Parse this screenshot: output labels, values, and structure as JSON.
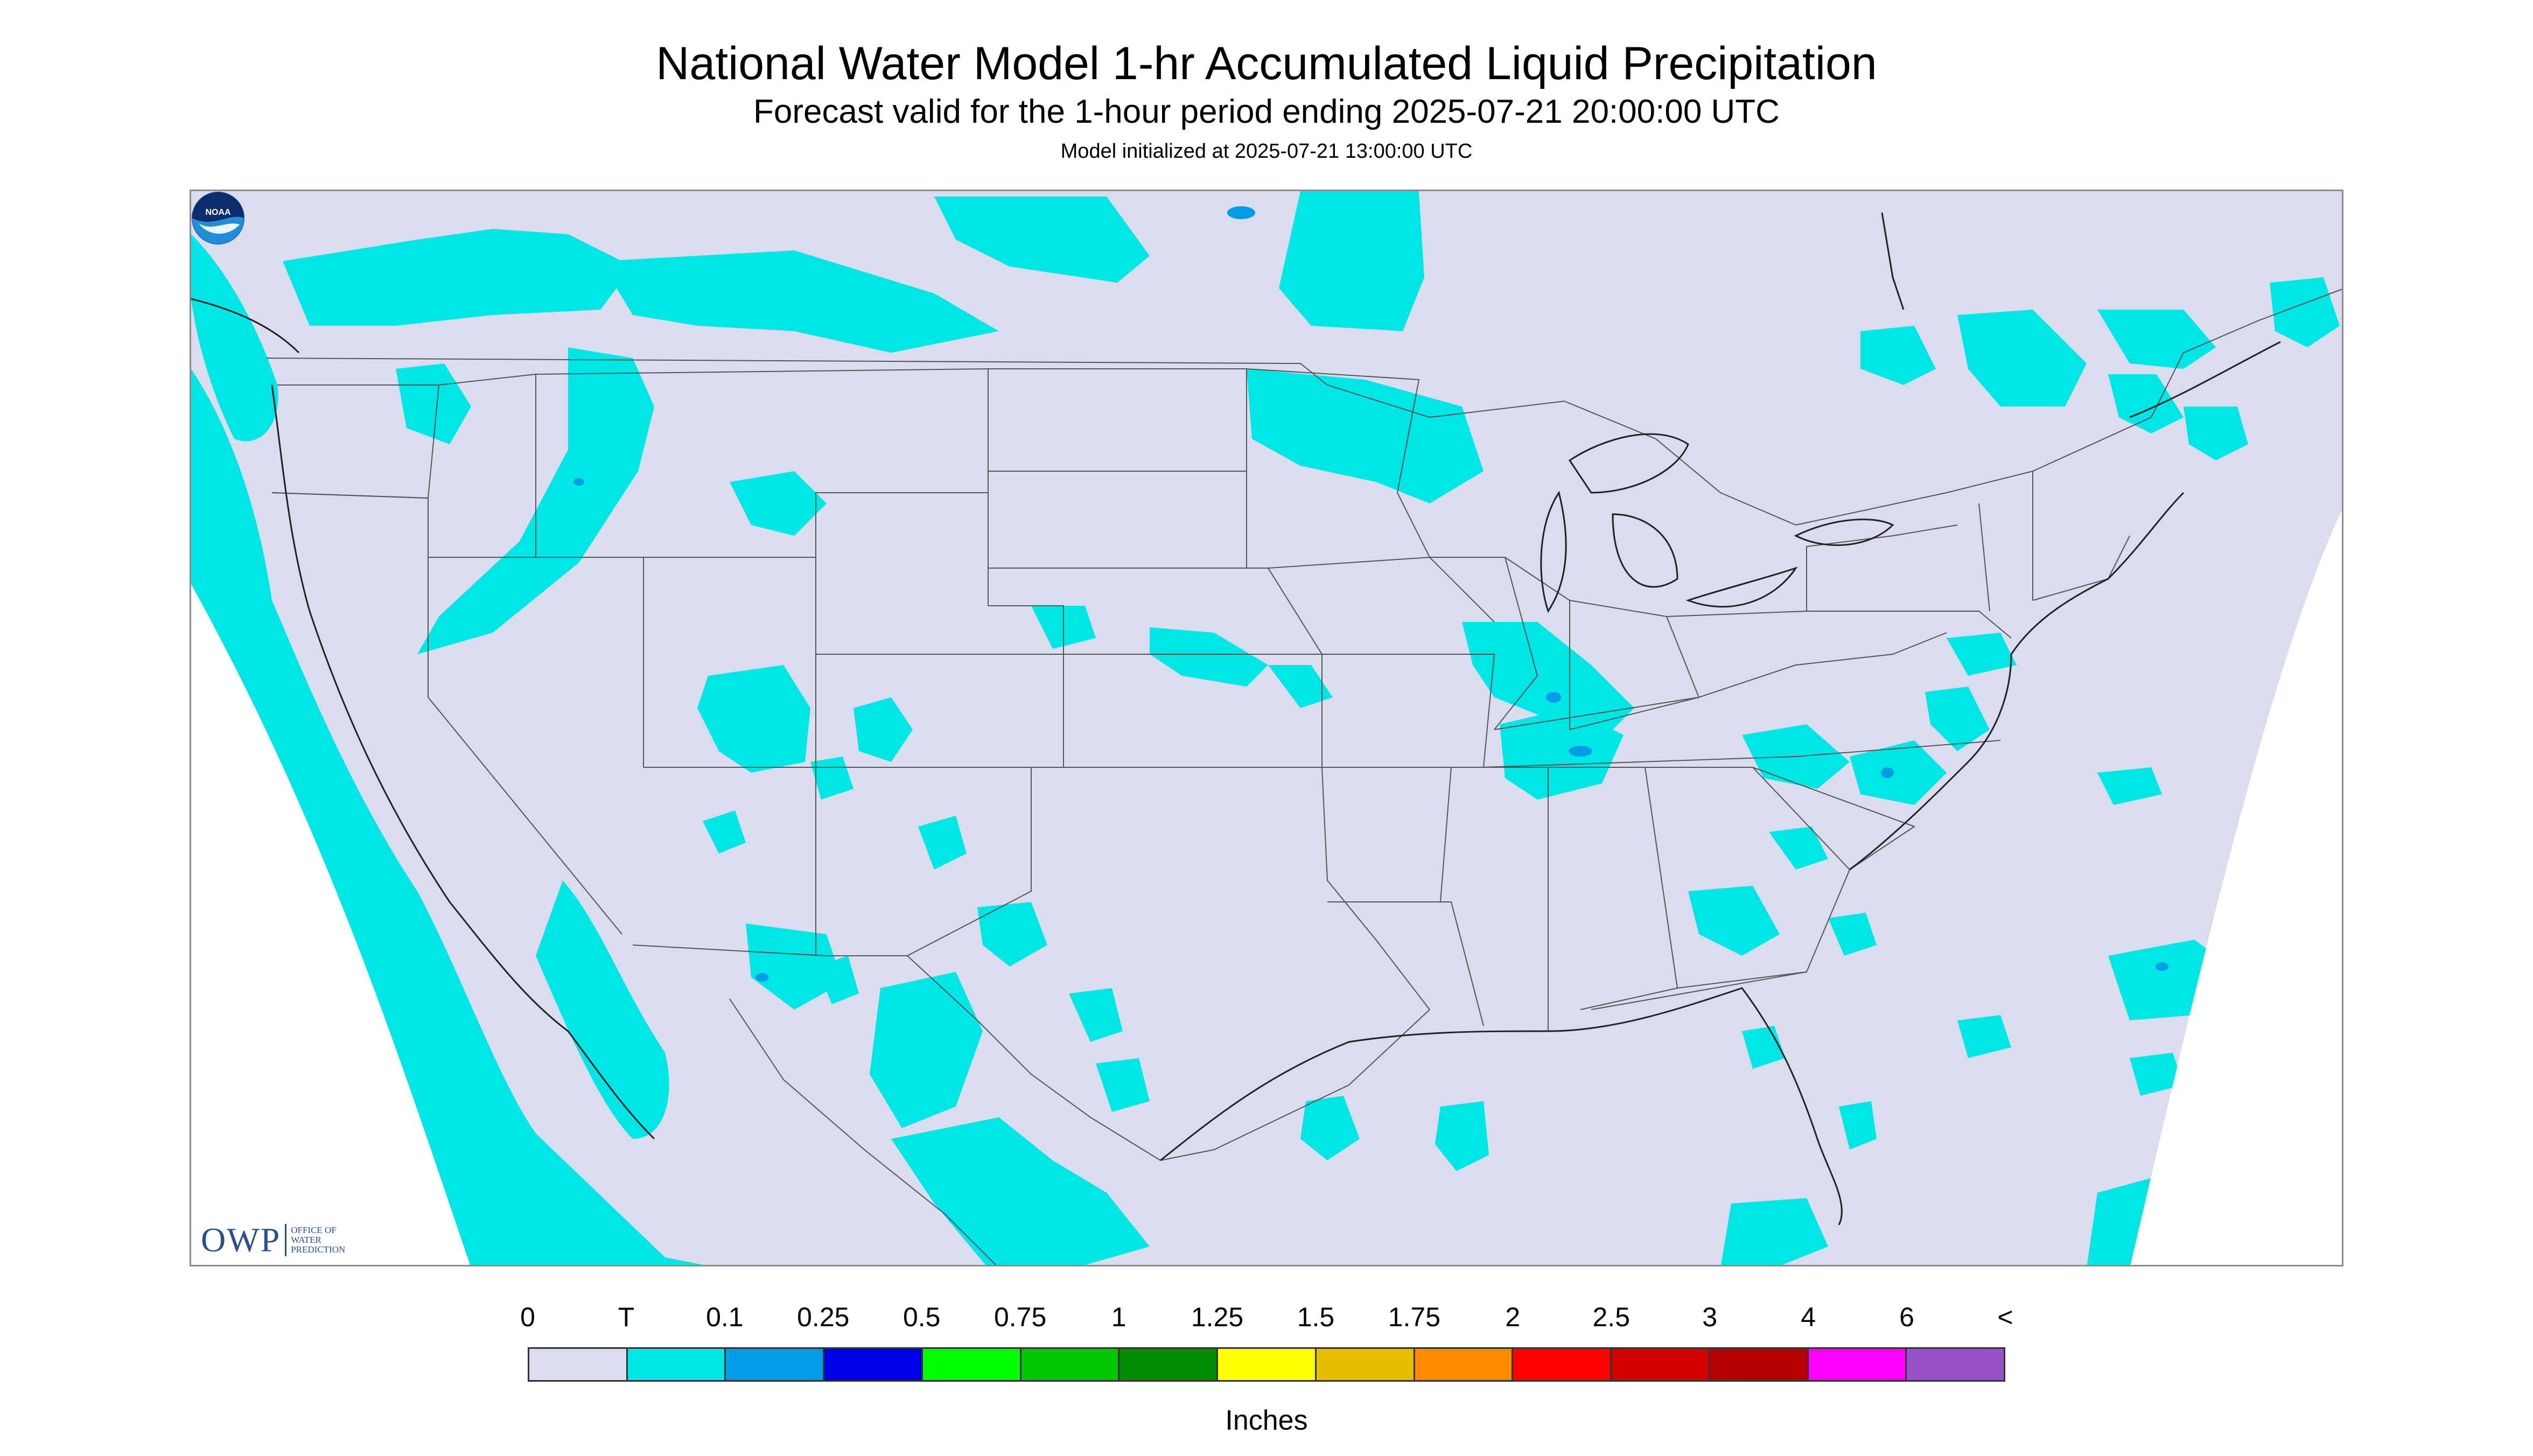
{
  "title": "National Water Model 1-hr Accumulated Liquid Precipitation",
  "subtitle": "Forecast valid for the 1-hour period ending 2025-07-21 20:00:00 UTC",
  "init": "Model initialized at 2025-07-21 13:00:00 UTC",
  "colors": {
    "domain": "#dcdcef",
    "trace": "#00e6e6",
    "light_blue": "#009ce6",
    "outline": "#555555",
    "border_gray": "#8c8c8c"
  },
  "logos": {
    "owp_mark": "OWP",
    "owp_text": "Office of Water Prediction",
    "noaa_text": "NOAA",
    "owp_icon": "owp-logo",
    "noaa_icon": "noaa-logo"
  },
  "legend": {
    "labels": [
      "0",
      "T",
      "0.1",
      "0.25",
      "0.5",
      "0.75",
      "1",
      "1.25",
      "1.5",
      "1.75",
      "2",
      "2.5",
      "3",
      "4",
      "6",
      "<"
    ],
    "colors": [
      "#dcdcef",
      "#00e6e6",
      "#009ce6",
      "#0000e6",
      "#00ff00",
      "#00c800",
      "#008c00",
      "#ffff00",
      "#e6be00",
      "#ff8c00",
      "#ff0000",
      "#d20000",
      "#b40000",
      "#ff00ff",
      "#9650c8"
    ],
    "units": "Inches"
  }
}
